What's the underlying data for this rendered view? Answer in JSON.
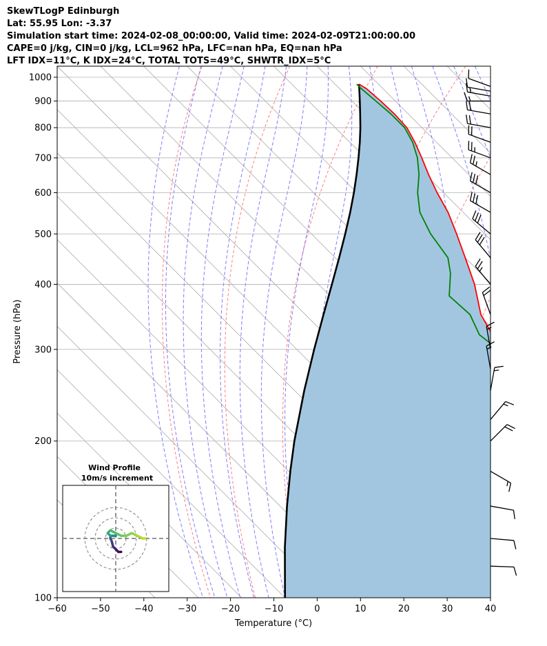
{
  "header": {
    "line1": "SkewTLogP Edinburgh",
    "line2": "Lat: 55.95   Lon: -3.37",
    "line3": "Simulation start time: 2024-02-08_00:00:00, Valid time: 2024-02-09T21:00:00.00",
    "line4": "CAPE=0 j/kg, CIN=0 j/kg, LCL=962 hPa, LFC=nan hPa, EQ=nan hPa",
    "line5": "LFT IDX=11°C, K IDX=24°C, TOTAL TOTS=49°C, SHWTR_IDX=5°C"
  },
  "colors": {
    "temperature": "#ff0000",
    "dewpoint": "#008000",
    "parcel": "#000000",
    "cape_shade": "#a2c6e0",
    "dry_adiabat": "#ff6666",
    "moist_adiabat": "#6666ff",
    "isotherm": "#aaaaaa"
  },
  "chart_data": [
    {
      "type": "skewt",
      "xlabel": "Temperature ($^\\circ$C)",
      "ylabel": "Pressure (hPa)",
      "xlim": [
        -60,
        40
      ],
      "ylim": [
        1050,
        100
      ],
      "log_y": true,
      "grid": true,
      "x_ticks": [
        -60,
        -50,
        -40,
        -30,
        -20,
        -10,
        0,
        10,
        20,
        30,
        40
      ],
      "x_tick_labels": [
        "−60",
        "−50",
        "−40",
        "−30",
        "−20",
        "−10",
        "0",
        "10",
        "20",
        "30",
        "40"
      ],
      "y_ticks": [
        1000,
        900,
        800,
        700,
        600,
        500,
        400,
        300,
        200,
        100
      ],
      "y_tick_labels": [
        "1000",
        "900",
        "800",
        "700",
        "600",
        "500",
        "400",
        "300",
        "200",
        "100"
      ],
      "series": [
        {
          "key": "temperature",
          "pressure": [
            970,
            950,
            900,
            850,
            800,
            750,
            700,
            650,
            600,
            550,
            500,
            450,
            400,
            350,
            320,
            300,
            280,
            260,
            240,
            220,
            200,
            180,
            160,
            140,
            120,
            100
          ],
          "values": [
            5.5,
            6.2,
            6.6,
            6.8,
            6.5,
            5.0,
            3.0,
            0.7,
            -1.5,
            -3.5,
            -6.5,
            -10.0,
            -14.0,
            -19.5,
            -21.5,
            -20.0,
            -18.5,
            -17.0,
            -14.0,
            -11.0,
            -7.0,
            -5.0,
            -1.0,
            3.0,
            6.0,
            8.0
          ]
        },
        {
          "key": "dewpoint",
          "pressure": [
            970,
            950,
            900,
            850,
            800,
            750,
            700,
            650,
            600,
            550,
            500,
            450,
            420,
            380,
            350,
            320,
            300,
            280,
            260,
            230,
            215,
            200,
            180,
            160,
            140,
            120,
            100
          ],
          "values": [
            5.0,
            5.0,
            5.5,
            6.0,
            6.0,
            4.5,
            2.0,
            -1.5,
            -6.0,
            -10.0,
            -12.5,
            -14.0,
            -17.0,
            -22.5,
            -22.0,
            -24.5,
            -23.5,
            -23.5,
            -25.5,
            -28.0,
            -36.5,
            -33.0,
            -30.0,
            -27.0,
            -24.0,
            -20.0,
            -15.0
          ]
        },
        {
          "key": "parcel",
          "pressure": [
            970,
            950,
            900,
            850,
            800,
            750,
            700,
            650,
            600,
            550,
            500,
            450,
            400,
            350,
            300,
            250,
            200,
            175,
            150,
            125,
            100
          ],
          "values": [
            5.5,
            4.5,
            1.8,
            -1.1,
            -4.2,
            -7.7,
            -11.6,
            -15.9,
            -20.7,
            -26.1,
            -32.2,
            -39.1,
            -46.9,
            -55.8,
            -66.0,
            -77.8,
            -91.7,
            -99.6,
            -108.4,
            -118.4,
            -130.0
          ]
        }
      ]
    },
    {
      "type": "hodograph",
      "title": "Wind Profile",
      "subtitle": "10m/s increment",
      "rings_ms": [
        10,
        20,
        30
      ],
      "u_ms": [
        2,
        1,
        0,
        -1,
        -1.5,
        -2,
        -2,
        -1,
        0,
        -1,
        -2,
        -3,
        -2,
        0,
        2,
        4,
        6,
        8,
        10,
        11
      ],
      "v_ms": [
        -5,
        -5,
        -4,
        -3,
        -1,
        0,
        1,
        1,
        1,
        1,
        1,
        2,
        3,
        2,
        1,
        1,
        2,
        1,
        0,
        0
      ]
    },
    {
      "type": "wind-barbs",
      "levels_hPa": [
        960,
        940,
        920,
        900,
        850,
        800,
        750,
        700,
        650,
        600,
        550,
        500,
        450,
        400,
        350,
        300,
        275,
        250,
        220,
        200,
        175,
        150,
        130,
        115
      ],
      "direction_deg": [
        290,
        280,
        280,
        270,
        280,
        280,
        290,
        290,
        300,
        300,
        300,
        310,
        320,
        320,
        340,
        350,
        350,
        10,
        40,
        45,
        120,
        100,
        95,
        92
      ],
      "speed_kt": [
        10,
        10,
        15,
        15,
        20,
        20,
        20,
        25,
        25,
        30,
        30,
        30,
        30,
        25,
        20,
        15,
        15,
        15,
        15,
        20,
        15,
        10,
        10,
        10
      ]
    }
  ]
}
